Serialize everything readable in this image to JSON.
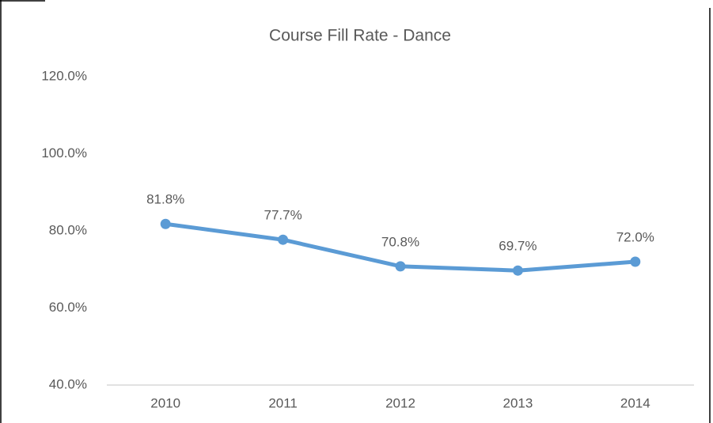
{
  "chart_data": {
    "type": "line",
    "title": "Course Fill Rate - Dance",
    "categories": [
      "2010",
      "2011",
      "2012",
      "2013",
      "2014"
    ],
    "values": [
      81.8,
      77.7,
      70.8,
      69.7,
      72.0
    ],
    "value_labels": [
      "81.8%",
      "77.7%",
      "70.8%",
      "69.7%",
      "72.0%"
    ],
    "color": "#5b9bd5",
    "ylim": [
      40,
      120
    ],
    "yticks": [
      {
        "value": 40,
        "label": "40.0%"
      },
      {
        "value": 60,
        "label": "60.0%"
      },
      {
        "value": 80,
        "label": "80.0%"
      },
      {
        "value": 100,
        "label": "100.0%"
      },
      {
        "value": 120,
        "label": "120.0%"
      }
    ],
    "grid": false
  }
}
